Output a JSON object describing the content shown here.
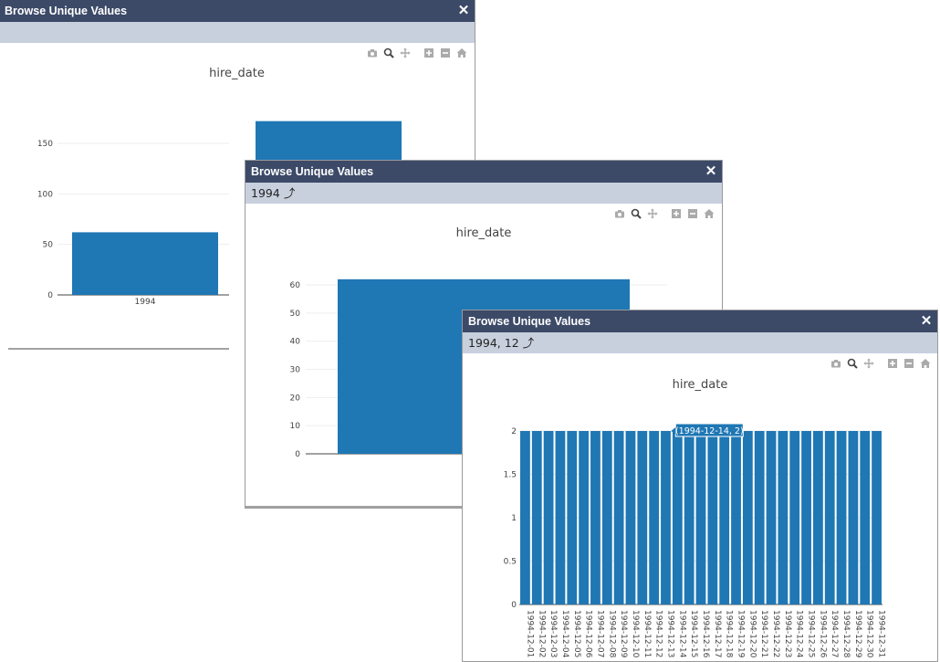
{
  "windows": [
    {
      "title": "Browse Unique Values",
      "close_label": "✕",
      "breadcrumb": "",
      "chart_data": {
        "type": "bar",
        "title": "hire_date",
        "categories": [
          "1994"
        ],
        "values": [
          62
        ],
        "visible_partial_value": 172,
        "yticks": [
          0,
          50,
          100,
          150
        ],
        "ylim": [
          0,
          200
        ]
      }
    },
    {
      "title": "Browse Unique Values",
      "close_label": "✕",
      "breadcrumb": "1994",
      "chart_data": {
        "type": "bar",
        "title": "hire_date",
        "values": [
          62
        ],
        "yticks": [
          0,
          10,
          20,
          30,
          40,
          50,
          60
        ],
        "ylim": [
          0,
          65
        ]
      }
    },
    {
      "title": "Browse Unique Values",
      "close_label": "✕",
      "breadcrumb": "1994, 12",
      "chart_data": {
        "type": "bar",
        "title": "hire_date",
        "categories": [
          "1994-12-01",
          "1994-12-02",
          "1994-12-03",
          "1994-12-04",
          "1994-12-05",
          "1994-12-06",
          "1994-12-07",
          "1994-12-08",
          "1994-12-09",
          "1994-12-10",
          "1994-12-11",
          "1994-12-12",
          "1994-12-13",
          "1994-12-14",
          "1994-12-15",
          "1994-12-16",
          "1994-12-17",
          "1994-12-18",
          "1994-12-19",
          "1994-12-20",
          "1994-12-21",
          "1994-12-22",
          "1994-12-23",
          "1994-12-24",
          "1994-12-25",
          "1994-12-26",
          "1994-12-27",
          "1994-12-28",
          "1994-12-29",
          "1994-12-30",
          "1994-12-31"
        ],
        "values": [
          2,
          2,
          2,
          2,
          2,
          2,
          2,
          2,
          2,
          2,
          2,
          2,
          2,
          2,
          2,
          2,
          2,
          2,
          2,
          2,
          2,
          2,
          2,
          2,
          2,
          2,
          2,
          2,
          2,
          2,
          2
        ],
        "yticks": [
          0,
          0.5,
          1,
          1.5,
          2
        ],
        "yticklabels": [
          "0",
          "0.5",
          "1",
          "1.5",
          "2"
        ],
        "ylim": [
          0,
          2
        ],
        "hover_label": "(1994-12-14, 2)",
        "hover_index": 13
      }
    }
  ],
  "colors": {
    "bar": "#1f77b4",
    "titlebar": "#3c4a68",
    "crumbbar": "#c8d0de"
  },
  "modebar_icons": [
    "camera-icon",
    "zoom-icon",
    "pan-icon",
    "zoom-in-icon",
    "zoom-out-icon",
    "home-icon"
  ],
  "crumb_up_icon": "⤴"
}
